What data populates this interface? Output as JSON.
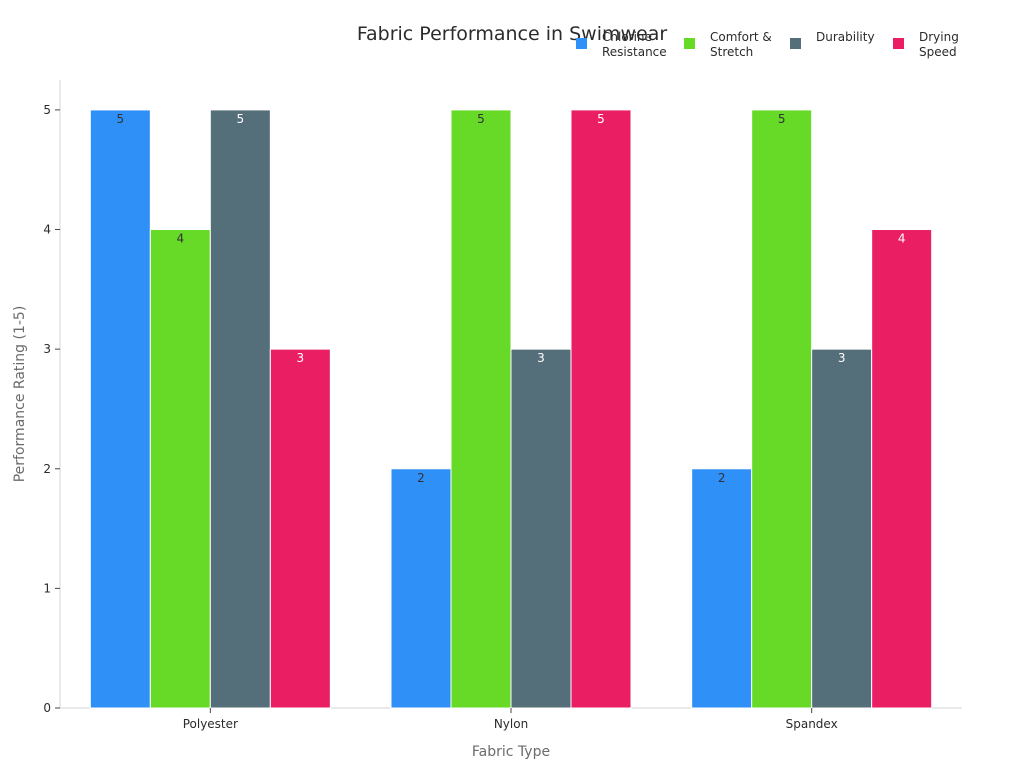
{
  "chart_data": {
    "type": "bar",
    "title": "Fabric Performance in Swimwear",
    "xlabel": "Fabric Type",
    "ylabel": "Performance Rating (1-5)",
    "categories": [
      "Polyester",
      "Nylon",
      "Spandex"
    ],
    "ylim": [
      0,
      5.25
    ],
    "yticks": [
      "0",
      "1",
      "2",
      "3",
      "4",
      "5"
    ],
    "grid": false,
    "legend_position": "top-right",
    "series": [
      {
        "name": "Chlorine Resistance",
        "legend_lines": [
          "Chlorine",
          "Resistance"
        ],
        "color": "#2f90f8",
        "label_color": "#333333",
        "values": [
          5,
          2,
          2
        ]
      },
      {
        "name": "Comfort & Stretch",
        "legend_lines": [
          "Comfort &",
          "Stretch"
        ],
        "color": "#66da26",
        "label_color": "#333333",
        "values": [
          4,
          5,
          5
        ]
      },
      {
        "name": "Durability",
        "legend_lines": [
          "Durability"
        ],
        "color": "#546e7a",
        "label_color": "#ffffff",
        "values": [
          5,
          3,
          3
        ]
      },
      {
        "name": "Drying Speed",
        "legend_lines": [
          "Drying",
          "Speed"
        ],
        "color": "#e91e63",
        "label_color": "#ffffff",
        "values": [
          3,
          5,
          4
        ]
      }
    ]
  }
}
